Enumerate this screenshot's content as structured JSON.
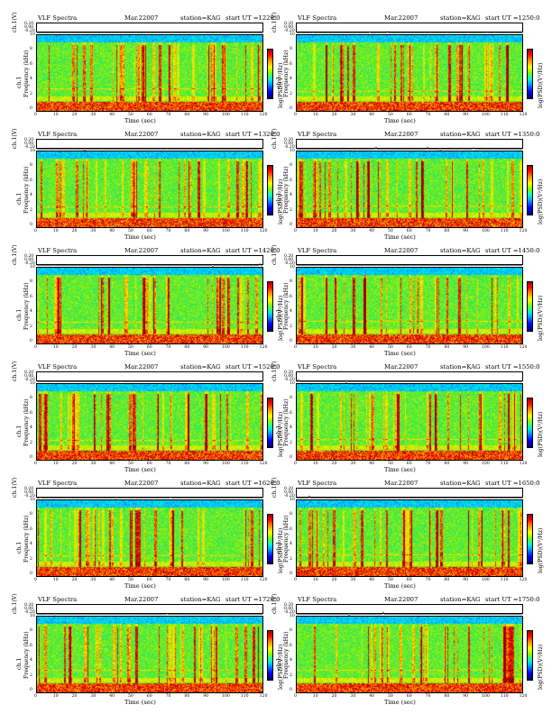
{
  "chart_data": [
    {
      "type": "heatmap",
      "title": "VLF Spectra",
      "date": "Mar.22007",
      "station": "station=KAG",
      "start": "start  UT  =1220:0",
      "ts_ylabel": "ch.1(V)",
      "ts_ticks": [
        "0.20",
        "0.00",
        "-0.20"
      ],
      "channel": "ch.1",
      "ylabel": "Frequency  (kHz)",
      "yticks": [
        "10",
        "8",
        "6",
        "4",
        "2",
        "0"
      ],
      "xticks": [
        "0",
        "10",
        "20",
        "30",
        "40",
        "50",
        "60",
        "70",
        "80",
        "90",
        "100",
        "110",
        "120"
      ],
      "xlabel": "Time  (sec)",
      "colorbar_label": "log(PSD)(V²/Hz)",
      "xlim": [
        0,
        120
      ],
      "ylim": [
        0,
        10
      ]
    },
    {
      "type": "heatmap",
      "title": "VLF Spectra",
      "date": "Mar.22007",
      "station": "station=KAG",
      "start": "start  UT  =1250:0",
      "ts_ylabel": "ch.1(V)",
      "ts_ticks": [
        "0.20",
        "0.00",
        "-0.20"
      ],
      "channel": "ch.1",
      "ylabel": "Frequency  (kHz)",
      "yticks": [
        "10",
        "8",
        "6",
        "4",
        "2",
        "0"
      ],
      "xticks": [
        "0",
        "10",
        "20",
        "30",
        "40",
        "50",
        "60",
        "70",
        "80",
        "90",
        "100",
        "110",
        "120"
      ],
      "xlabel": "Time  (sec)",
      "colorbar_label": "log(PSD)(V²/Hz)",
      "xlim": [
        0,
        120
      ],
      "ylim": [
        0,
        10
      ]
    },
    {
      "type": "heatmap",
      "title": "VLF Spectra",
      "date": "Mar.22007",
      "station": "station=KAG",
      "start": "start  UT  =1320:0",
      "ts_ylabel": "ch.1(V)",
      "ts_ticks": [
        "0.20",
        "0.00",
        "-0.20"
      ],
      "channel": "ch.1",
      "ylabel": "Frequency  (kHz)",
      "yticks": [
        "10",
        "8",
        "6",
        "4",
        "2",
        "0"
      ],
      "xticks": [
        "0",
        "10",
        "20",
        "30",
        "40",
        "50",
        "60",
        "70",
        "80",
        "90",
        "100",
        "110",
        "120"
      ],
      "xlabel": "Time  (sec)",
      "colorbar_label": "log(PSD)(V²/Hz)",
      "xlim": [
        0,
        120
      ],
      "ylim": [
        0,
        10
      ]
    },
    {
      "type": "heatmap",
      "title": "VLF Spectra",
      "date": "Mar.22007",
      "station": "station=KAG",
      "start": "start  UT  =1350:0",
      "ts_ylabel": "ch.1(V)",
      "ts_ticks": [
        "0.20",
        "0.00",
        "-0.20"
      ],
      "channel": "ch.1",
      "ylabel": "Frequency  (kHz)",
      "yticks": [
        "10",
        "8",
        "6",
        "4",
        "2",
        "0"
      ],
      "xticks": [
        "0",
        "10",
        "20",
        "30",
        "40",
        "50",
        "60",
        "70",
        "80",
        "90",
        "100",
        "110",
        "120"
      ],
      "xlabel": "Time  (sec)",
      "colorbar_label": "log(PSD)(V²/Hz)",
      "xlim": [
        0,
        120
      ],
      "ylim": [
        0,
        10
      ]
    },
    {
      "type": "heatmap",
      "title": "VLF Spectra",
      "date": "Mar.22007",
      "station": "station=KAG",
      "start": "start  UT  =1420:0",
      "ts_ylabel": "ch.1(V)",
      "ts_ticks": [
        "0.20",
        "0.00",
        "-0.20"
      ],
      "channel": "ch.1",
      "ylabel": "Frequency  (kHz)",
      "yticks": [
        "10",
        "8",
        "6",
        "4",
        "2",
        "0"
      ],
      "xticks": [
        "0",
        "10",
        "20",
        "30",
        "40",
        "50",
        "60",
        "70",
        "80",
        "90",
        "100",
        "110",
        "120"
      ],
      "xlabel": "Time  (sec)",
      "colorbar_label": "log(PSD)(V²/Hz)",
      "xlim": [
        0,
        120
      ],
      "ylim": [
        0,
        10
      ]
    },
    {
      "type": "heatmap",
      "title": "VLF Spectra",
      "date": "Mar.22007",
      "station": "station=KAG",
      "start": "start  UT  =1450:0",
      "ts_ylabel": "ch.1(V)",
      "ts_ticks": [
        "0.20",
        "0.00",
        "-0.20"
      ],
      "channel": "ch.1",
      "ylabel": "Frequency  (kHz)",
      "yticks": [
        "10",
        "8",
        "6",
        "4",
        "2",
        "0"
      ],
      "xticks": [
        "0",
        "10",
        "20",
        "30",
        "40",
        "50",
        "60",
        "70",
        "80",
        "90",
        "100",
        "110",
        "120"
      ],
      "xlabel": "Time  (sec)",
      "colorbar_label": "log(PSD)(V²/Hz)",
      "xlim": [
        0,
        120
      ],
      "ylim": [
        0,
        10
      ]
    },
    {
      "type": "heatmap",
      "title": "VLF Spectra",
      "date": "Mar.22007",
      "station": "station=KAG",
      "start": "start  UT  =1520:0",
      "ts_ylabel": "ch.1(V)",
      "ts_ticks": [
        "0.20",
        "0.00",
        "-0.20"
      ],
      "channel": "ch.1",
      "ylabel": "Frequency  (kHz)",
      "yticks": [
        "10",
        "8",
        "6",
        "4",
        "2",
        "0"
      ],
      "xticks": [
        "0",
        "10",
        "20",
        "30",
        "40",
        "50",
        "60",
        "70",
        "80",
        "90",
        "100",
        "110",
        "120"
      ],
      "xlabel": "Time  (sec)",
      "colorbar_label": "log(PSD)(V²/Hz)",
      "xlim": [
        0,
        120
      ],
      "ylim": [
        0,
        10
      ]
    },
    {
      "type": "heatmap",
      "title": "VLF Spectra",
      "date": "Mar.22007",
      "station": "station=KAG",
      "start": "start  UT  =1550:0",
      "ts_ylabel": "ch.1(V)",
      "ts_ticks": [
        "0.20",
        "0.00",
        "-0.20"
      ],
      "channel": "ch.1",
      "ylabel": "Frequency  (kHz)",
      "yticks": [
        "10",
        "8",
        "6",
        "4",
        "2",
        "0"
      ],
      "xticks": [
        "0",
        "10",
        "20",
        "30",
        "40",
        "50",
        "60",
        "70",
        "80",
        "90",
        "100",
        "110",
        "120"
      ],
      "xlabel": "Time  (sec)",
      "colorbar_label": "log(PSD)(V²/Hz)",
      "xlim": [
        0,
        120
      ],
      "ylim": [
        0,
        10
      ]
    },
    {
      "type": "heatmap",
      "title": "VLF Spectra",
      "date": "Mar.22007",
      "station": "station=KAG",
      "start": "start  UT  =1620:0",
      "ts_ylabel": "ch.1(V)",
      "ts_ticks": [
        "0.20",
        "0.00",
        "-0.20"
      ],
      "channel": "ch.1",
      "ylabel": "Frequency  (kHz)",
      "yticks": [
        "10",
        "8",
        "6",
        "4",
        "2",
        "0"
      ],
      "xticks": [
        "0",
        "10",
        "20",
        "30",
        "40",
        "50",
        "60",
        "70",
        "80",
        "90",
        "100",
        "110",
        "120"
      ],
      "xlabel": "Time  (sec)",
      "colorbar_label": "log(PSD)(V²/Hz)",
      "xlim": [
        0,
        120
      ],
      "ylim": [
        0,
        10
      ]
    },
    {
      "type": "heatmap",
      "title": "VLF Spectra",
      "date": "Mar.22007",
      "station": "station=KAG",
      "start": "start  UT  =1650:0",
      "ts_ylabel": "ch.1(V)",
      "ts_ticks": [
        "0.20",
        "0.00",
        "-0.20"
      ],
      "channel": "ch.1",
      "ylabel": "Frequency  (kHz)",
      "yticks": [
        "10",
        "8",
        "6",
        "4",
        "2",
        "0"
      ],
      "xticks": [
        "0",
        "10",
        "20",
        "30",
        "40",
        "50",
        "60",
        "70",
        "80",
        "90",
        "100",
        "110",
        "120"
      ],
      "xlabel": "Time  (sec)",
      "colorbar_label": "log(PSD)(V²/Hz)",
      "xlim": [
        0,
        120
      ],
      "ylim": [
        0,
        10
      ]
    },
    {
      "type": "heatmap",
      "title": "VLF Spectra",
      "date": "Mar.22007",
      "station": "station=KAG",
      "start": "start  UT  =1720:0",
      "ts_ylabel": "ch.1(V)",
      "ts_ticks": [
        "0.20",
        "0.00",
        "-0.20"
      ],
      "channel": "ch.1",
      "ylabel": "Frequency  (kHz)",
      "yticks": [
        "10",
        "8",
        "6",
        "4",
        "2",
        "0"
      ],
      "xticks": [
        "0",
        "10",
        "20",
        "30",
        "40",
        "50",
        "60",
        "70",
        "80",
        "90",
        "100",
        "110",
        "120"
      ],
      "xlabel": "Time  (sec)",
      "colorbar_label": "log(PSD)(V²/Hz)",
      "xlim": [
        0,
        120
      ],
      "ylim": [
        0,
        10
      ]
    },
    {
      "type": "heatmap",
      "title": "VLF Spectra",
      "date": "Mar.22007",
      "station": "station=KAG",
      "start": "start  UT  =1750:0",
      "ts_ylabel": "ch.1(V)",
      "ts_ticks": [
        "0.20",
        "0.00",
        "-0.20"
      ],
      "channel": "ch.1",
      "ylabel": "Frequency  (kHz)",
      "yticks": [
        "10",
        "8",
        "6",
        "4",
        "2",
        "0"
      ],
      "xticks": [
        "0",
        "10",
        "20",
        "30",
        "40",
        "50",
        "60",
        "70",
        "80",
        "90",
        "100",
        "110",
        "120"
      ],
      "xlabel": "Time  (sec)",
      "colorbar_label": "log(PSD)(V²/Hz)",
      "xlim": [
        0,
        120
      ],
      "ylim": [
        0,
        10
      ]
    }
  ]
}
